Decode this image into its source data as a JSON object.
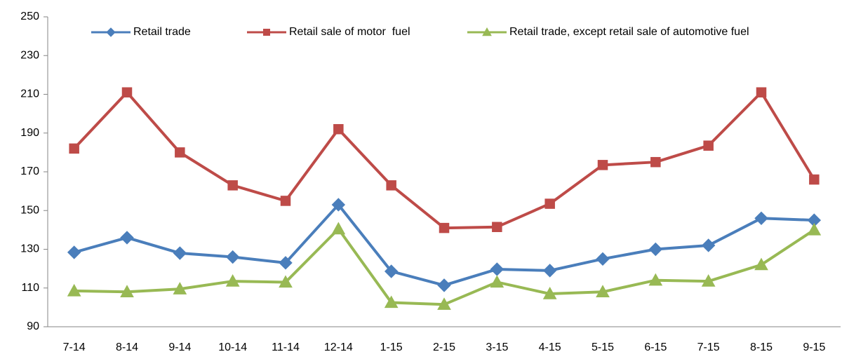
{
  "chart_data": {
    "type": "line",
    "categories": [
      "7-14",
      "8-14",
      "9-14",
      "10-14",
      "11-14",
      "12-14",
      "1-15",
      "2-15",
      "3-15",
      "4-15",
      "5-15",
      "6-15",
      "7-15",
      "8-15",
      "9-15"
    ],
    "series": [
      {
        "name": "Retail trade",
        "color": "#4a7ebb",
        "marker": "diamond",
        "values": [
          128.4,
          136,
          128,
          126,
          123,
          153,
          118.6,
          111.4,
          119.7,
          119,
          125,
          130,
          132,
          146,
          145
        ]
      },
      {
        "name": "Retail sale of motor  fuel",
        "color": "#be4b48",
        "marker": "square",
        "values": [
          182,
          211,
          180,
          163,
          155,
          192,
          163,
          141,
          141.5,
          153.5,
          173.5,
          175,
          183.5,
          211,
          166
        ]
      },
      {
        "name": "Retail trade, except retail sale of automotive fuel",
        "color": "#98b954",
        "marker": "triangle",
        "values": [
          108.5,
          108,
          109.5,
          113.5,
          113,
          140.5,
          102.5,
          101.5,
          113,
          107,
          108,
          114,
          113.5,
          122,
          140
        ]
      }
    ],
    "ylim": [
      90,
      250
    ],
    "yticks": [
      90,
      110,
      130,
      150,
      170,
      190,
      210,
      230,
      250
    ],
    "grid": false,
    "legend": "top"
  }
}
